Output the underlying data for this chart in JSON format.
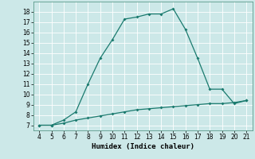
{
  "xlabel": "Humidex (Indice chaleur)",
  "x": [
    4,
    5,
    6,
    7,
    8,
    9,
    10,
    11,
    12,
    13,
    14,
    15,
    16,
    17,
    18,
    19,
    20,
    21
  ],
  "y_curve": [
    7.0,
    7.0,
    7.5,
    8.3,
    11.0,
    13.5,
    15.3,
    17.3,
    17.5,
    17.8,
    17.8,
    18.3,
    16.3,
    13.5,
    10.5,
    10.5,
    9.1,
    9.4
  ],
  "y_line": [
    7.0,
    7.0,
    7.2,
    7.5,
    7.7,
    7.9,
    8.1,
    8.3,
    8.5,
    8.6,
    8.7,
    8.8,
    8.9,
    9.0,
    9.1,
    9.1,
    9.2,
    9.4
  ],
  "xlim": [
    3.5,
    21.5
  ],
  "ylim": [
    6.5,
    19.0
  ],
  "yticks": [
    7,
    8,
    9,
    10,
    11,
    12,
    13,
    14,
    15,
    16,
    17,
    18
  ],
  "xticks": [
    4,
    5,
    6,
    7,
    8,
    9,
    10,
    11,
    12,
    13,
    14,
    15,
    16,
    17,
    18,
    19,
    20,
    21
  ],
  "line_color": "#1a7a6e",
  "bg_color": "#cce8e8",
  "grid_color": "#ffffff",
  "tick_fontsize": 5.5,
  "label_fontsize": 6.5,
  "grid_linewidth": 0.6,
  "line_linewidth": 0.9,
  "marker_size": 2.0
}
